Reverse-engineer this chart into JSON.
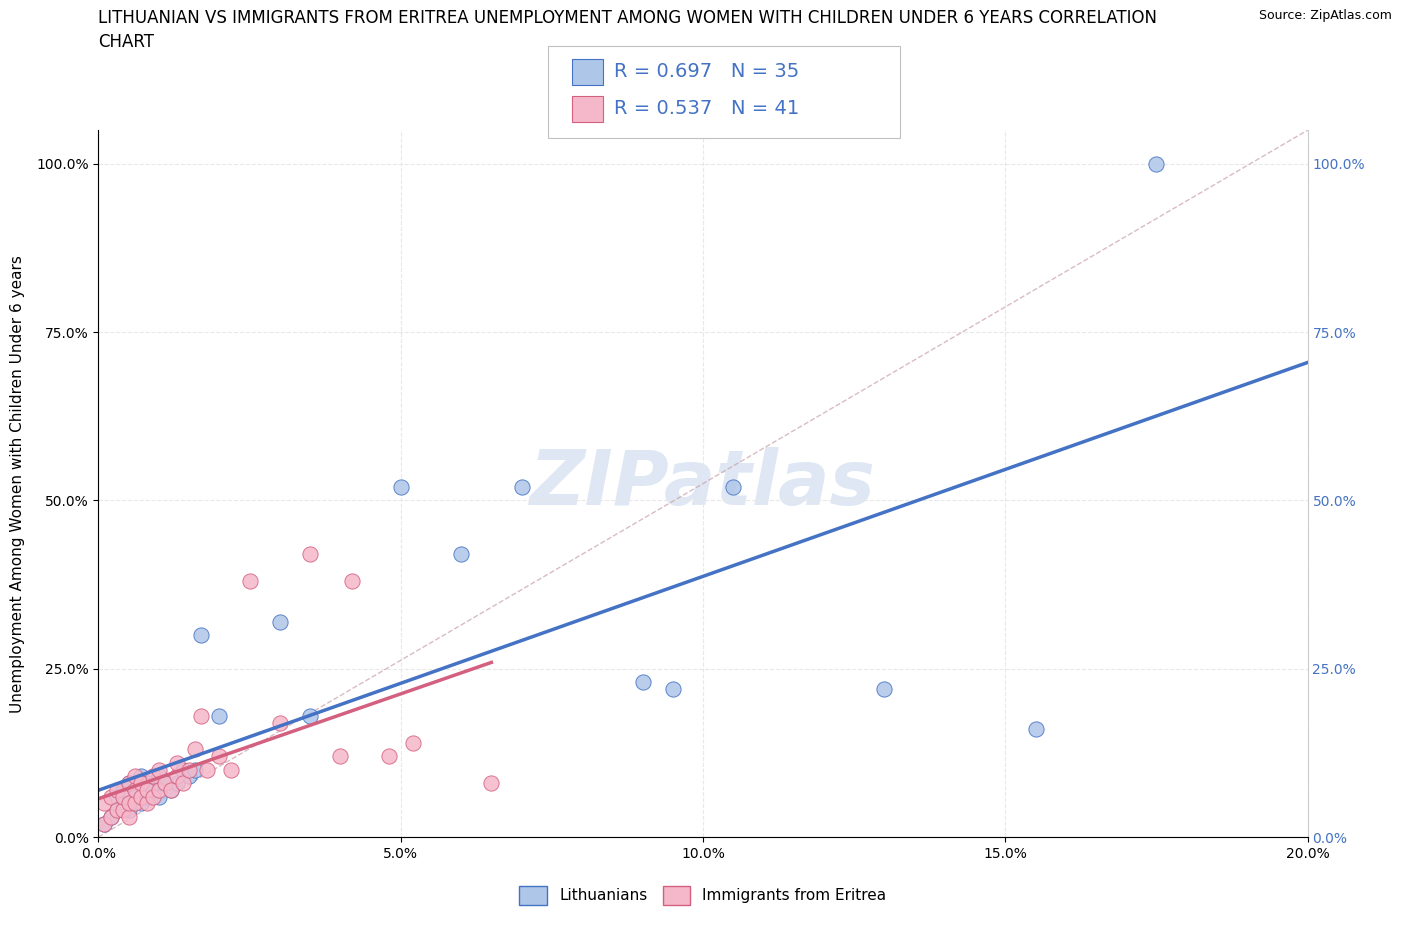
{
  "title_line1": "LITHUANIAN VS IMMIGRANTS FROM ERITREA UNEMPLOYMENT AMONG WOMEN WITH CHILDREN UNDER 6 YEARS CORRELATION",
  "title_line2": "CHART",
  "source": "Source: ZipAtlas.com",
  "ylabel": "Unemployment Among Women with Children Under 6 years",
  "watermark": "ZIPatlas",
  "R_blue": 0.697,
  "N_blue": 35,
  "R_pink": 0.537,
  "N_pink": 41,
  "xlim": [
    0.0,
    0.2
  ],
  "ylim": [
    0.0,
    1.05
  ],
  "yticks": [
    0.0,
    0.25,
    0.5,
    0.75,
    1.0
  ],
  "xticks": [
    0.0,
    0.05,
    0.1,
    0.15,
    0.2
  ],
  "blue_x": [
    0.001,
    0.002,
    0.003,
    0.003,
    0.004,
    0.004,
    0.005,
    0.005,
    0.006,
    0.007,
    0.007,
    0.008,
    0.008,
    0.009,
    0.01,
    0.01,
    0.011,
    0.012,
    0.013,
    0.014,
    0.015,
    0.016,
    0.017,
    0.02,
    0.03,
    0.035,
    0.05,
    0.06,
    0.07,
    0.09,
    0.095,
    0.105,
    0.13,
    0.155,
    0.175
  ],
  "blue_y": [
    0.02,
    0.03,
    0.04,
    0.06,
    0.05,
    0.07,
    0.04,
    0.08,
    0.06,
    0.05,
    0.09,
    0.06,
    0.08,
    0.07,
    0.06,
    0.09,
    0.08,
    0.07,
    0.08,
    0.1,
    0.09,
    0.1,
    0.3,
    0.18,
    0.32,
    0.18,
    0.52,
    0.42,
    0.52,
    0.23,
    0.22,
    0.52,
    0.22,
    0.16,
    1.0
  ],
  "pink_x": [
    0.001,
    0.001,
    0.002,
    0.002,
    0.003,
    0.003,
    0.004,
    0.004,
    0.005,
    0.005,
    0.005,
    0.006,
    0.006,
    0.006,
    0.007,
    0.007,
    0.008,
    0.008,
    0.009,
    0.009,
    0.01,
    0.01,
    0.011,
    0.012,
    0.013,
    0.013,
    0.014,
    0.015,
    0.016,
    0.017,
    0.018,
    0.02,
    0.022,
    0.025,
    0.03,
    0.035,
    0.04,
    0.042,
    0.048,
    0.052,
    0.065
  ],
  "pink_y": [
    0.02,
    0.05,
    0.03,
    0.06,
    0.04,
    0.07,
    0.04,
    0.06,
    0.03,
    0.05,
    0.08,
    0.05,
    0.07,
    0.09,
    0.06,
    0.08,
    0.05,
    0.07,
    0.06,
    0.09,
    0.07,
    0.1,
    0.08,
    0.07,
    0.09,
    0.11,
    0.08,
    0.1,
    0.13,
    0.18,
    0.1,
    0.12,
    0.1,
    0.38,
    0.17,
    0.42,
    0.12,
    0.38,
    0.12,
    0.14,
    0.08
  ],
  "blue_color": "#aec6e8",
  "blue_edge_color": "#4472c4",
  "pink_color": "#f5b8ca",
  "pink_edge_color": "#d46080",
  "blue_line_color": "#4472c4",
  "pink_line_color": "#d46080",
  "grid_color": "#e8e8e8",
  "watermark_color": "#c8d8ec",
  "background_color": "#ffffff",
  "right_tick_color": "#4472c4",
  "title_fontsize": 12,
  "label_fontsize": 11,
  "tick_fontsize": 10,
  "legend_fontsize": 14
}
